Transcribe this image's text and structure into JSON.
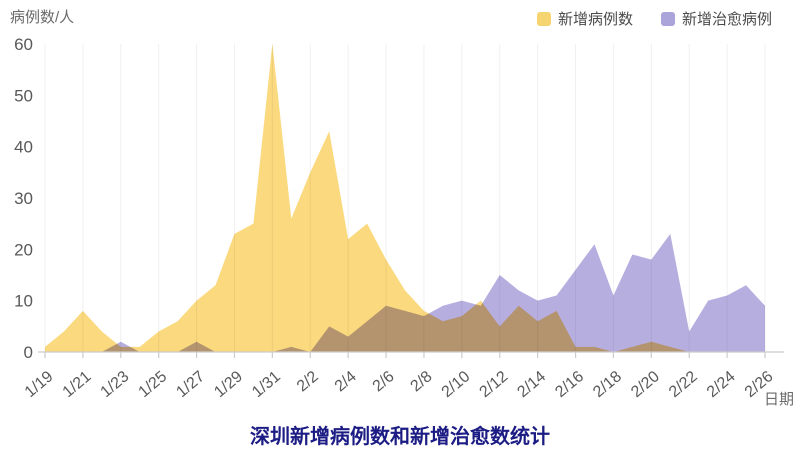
{
  "chart": {
    "y_unit": "病例数/人",
    "x_unit": "日期",
    "title_color": "#1c1c85",
    "axis_color": "#cccccc",
    "grid_color": "#f0f0f0",
    "tick_text_color": "#595959"
  },
  "legend": {
    "items": [
      {
        "label": "新增病例数",
        "color": "#f6d46f"
      },
      {
        "label": "新增治愈病例",
        "color": "#aba4db"
      }
    ]
  },
  "chart_data": {
    "type": "area",
    "title": "深圳新增病例数和新增治愈数统计",
    "xlabel": "日期",
    "ylabel": "病例数/人",
    "ylim": [
      0,
      60
    ],
    "y_ticks": [
      0,
      10,
      20,
      30,
      40,
      50,
      60
    ],
    "x_tick_interval": 2,
    "grid": "faint-vertical",
    "legend_position": "top-right",
    "x": [
      "1/19",
      "1/20",
      "1/21",
      "1/22",
      "1/23",
      "1/24",
      "1/25",
      "1/26",
      "1/27",
      "1/28",
      "1/29",
      "1/30",
      "1/31",
      "2/1",
      "2/2",
      "2/3",
      "2/4",
      "2/5",
      "2/6",
      "2/7",
      "2/8",
      "2/9",
      "2/10",
      "2/11",
      "2/12",
      "2/13",
      "2/14",
      "2/15",
      "2/16",
      "2/17",
      "2/18",
      "2/19",
      "2/20",
      "2/21",
      "2/22",
      "2/23",
      "2/24",
      "2/25",
      "2/26"
    ],
    "series": [
      {
        "name": "新增病例数",
        "color": "#fbd97e",
        "values": [
          1,
          4,
          8,
          4,
          1,
          1,
          4,
          6,
          10,
          13,
          23,
          25,
          60,
          26,
          35,
          43,
          22,
          25,
          18,
          12,
          8,
          6,
          7,
          10,
          5,
          9,
          6,
          8,
          1,
          1,
          0,
          1,
          2,
          1,
          0,
          0,
          0,
          0,
          0
        ]
      },
      {
        "name": "新增治愈病例",
        "color": "#b7aee0",
        "values": [
          0,
          0,
          0,
          0,
          2,
          0,
          0,
          0,
          2,
          0,
          0,
          0,
          0,
          1,
          0,
          5,
          3,
          6,
          9,
          8,
          7,
          9,
          10,
          9,
          15,
          12,
          10,
          11,
          16,
          21,
          11,
          19,
          18,
          23,
          4,
          10,
          11,
          13,
          9
        ]
      }
    ]
  }
}
